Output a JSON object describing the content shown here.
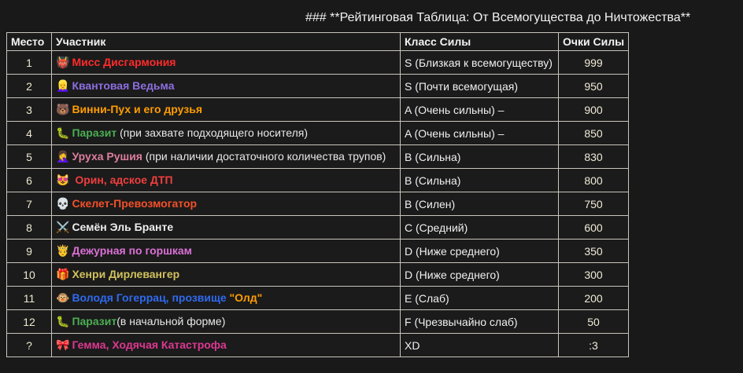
{
  "title": "### **Рейтинговая Таблица: От Всемогущества до Ничтожества**",
  "colors": {
    "background": "#191919",
    "table_border": "#c9c6bd",
    "header_text": "#f2f2f2",
    "place_text": "#efe8d0",
    "class_text": "#f0f0f0",
    "points_text": "#f0ead8",
    "note_text": "#e8e8e8",
    "name_red": "#ff2b2b",
    "name_purple": "#8d6fe0",
    "name_orange": "#ff9d00",
    "name_green": "#4cae53",
    "name_rose": "#db7f9e",
    "name_crimson": "#f03e3e",
    "name_tomato": "#f4502a",
    "name_white": "#ededed",
    "name_orchid": "#da70d6",
    "name_khaki": "#d2c25c",
    "name_blue": "#2f6af0",
    "name_deeppink": "#dd3890"
  },
  "table": {
    "headers": [
      "Место",
      "Участник",
      "Класс Силы",
      "Очки Силы"
    ],
    "rows": [
      {
        "place": "1",
        "emoji": "👹",
        "emoji_name": "ogre-emoji",
        "name_segments": [
          {
            "text": "Мисс Дисгармония",
            "color": "#ff2b2b",
            "bold": true
          }
        ],
        "power_class": "S (Близкая к всемогуществу)",
        "points": "999"
      },
      {
        "place": "2",
        "emoji": "👱‍♀️",
        "emoji_name": "blond-woman-emoji",
        "name_segments": [
          {
            "text": "Квантовая Ведьма",
            "color": "#8d6fe0",
            "bold": true
          }
        ],
        "power_class": "S (Почти всемогущая)",
        "points": "950"
      },
      {
        "place": "3",
        "emoji": "🐻",
        "emoji_name": "bear-emoji",
        "name_segments": [
          {
            "text": "Винни-Пух и его друзья",
            "color": "#ff9d00",
            "bold": true
          }
        ],
        "power_class": "A (Очень сильны) –",
        "points": "900"
      },
      {
        "place": "4",
        "emoji": "🐛",
        "emoji_name": "caterpillar-emoji",
        "name_segments": [
          {
            "text": "Паразит",
            "color": "#4cae53",
            "bold": true
          },
          {
            "text": " (при захвате подходящего носителя)",
            "color": "#e8e8e8",
            "bold": false
          }
        ],
        "power_class": "A (Очень сильны) –",
        "points": "850"
      },
      {
        "place": "5",
        "emoji": "🤦‍♀️",
        "emoji_name": "woman-facepalming-emoji",
        "name_segments": [
          {
            "text": "Уруха Рушия",
            "color": "#db7f9e",
            "bold": true
          },
          {
            "text": " (при наличии достаточного количества трупов)",
            "color": "#e8e8e8",
            "bold": false
          }
        ],
        "power_class": "B (Сильна)",
        "points": "830"
      },
      {
        "place": "6",
        "emoji": "😻",
        "emoji_name": "heart-eyes-cat-emoji",
        "name_segments": [
          {
            "text": " Орин, адское ДТП",
            "color": "#f03e3e",
            "bold": true
          }
        ],
        "power_class": "B (Сильна)",
        "points": "800"
      },
      {
        "place": "7",
        "emoji": "💀",
        "emoji_name": "skull-emoji",
        "name_segments": [
          {
            "text": "Скелет-Превозмогатор",
            "color": "#f4502a",
            "bold": true
          }
        ],
        "power_class": "B (Силен)",
        "points": "750"
      },
      {
        "place": "8",
        "emoji": "⚔️",
        "emoji_name": "crossed-swords-emoji",
        "name_segments": [
          {
            "text": "Семён Эль Бранте",
            "color": "#ededed",
            "bold": true
          }
        ],
        "power_class": "C (Средний)",
        "points": "600"
      },
      {
        "place": "9",
        "emoji": "🤴",
        "emoji_name": "royal-crown-person-emoji",
        "name_segments": [
          {
            "text": "Дежурная по горшкам",
            "color": "#da70d6",
            "bold": true
          }
        ],
        "power_class": "D (Ниже среднего)",
        "points": "350"
      },
      {
        "place": "10",
        "emoji": "🎁",
        "emoji_name": "gift-emoji",
        "name_segments": [
          {
            "text": "Хенри Дирлевангер",
            "color": "#d2c25c",
            "bold": true
          }
        ],
        "power_class": "D (Ниже среднего)",
        "points": "300"
      },
      {
        "place": "11",
        "emoji": "🐵",
        "emoji_name": "monkey-face-emoji",
        "name_segments": [
          {
            "text": "Володя Гогеррац, прозвище ",
            "color": "#2f6af0",
            "bold": true
          },
          {
            "text": "\"Олд\"",
            "color": "#ff9d00",
            "bold": true
          }
        ],
        "power_class": "E (Слаб)",
        "points": "200"
      },
      {
        "place": "12",
        "emoji": "🐛",
        "emoji_name": "caterpillar-emoji",
        "name_segments": [
          {
            "text": "Паразит",
            "color": "#4cae53",
            "bold": true
          },
          {
            "text": "(в начальной форме)",
            "color": "#e8e8e8",
            "bold": false
          }
        ],
        "power_class": "F (Чрезвычайно слаб)",
        "points": "50"
      },
      {
        "place": "?",
        "emoji": "🎀",
        "emoji_name": "ribbon-bow-emoji",
        "name_segments": [
          {
            "text": "Гемма, Ходячая Катастрофа",
            "color": "#dd3890",
            "bold": true
          }
        ],
        "power_class": "XD",
        "points": ":3"
      }
    ]
  }
}
